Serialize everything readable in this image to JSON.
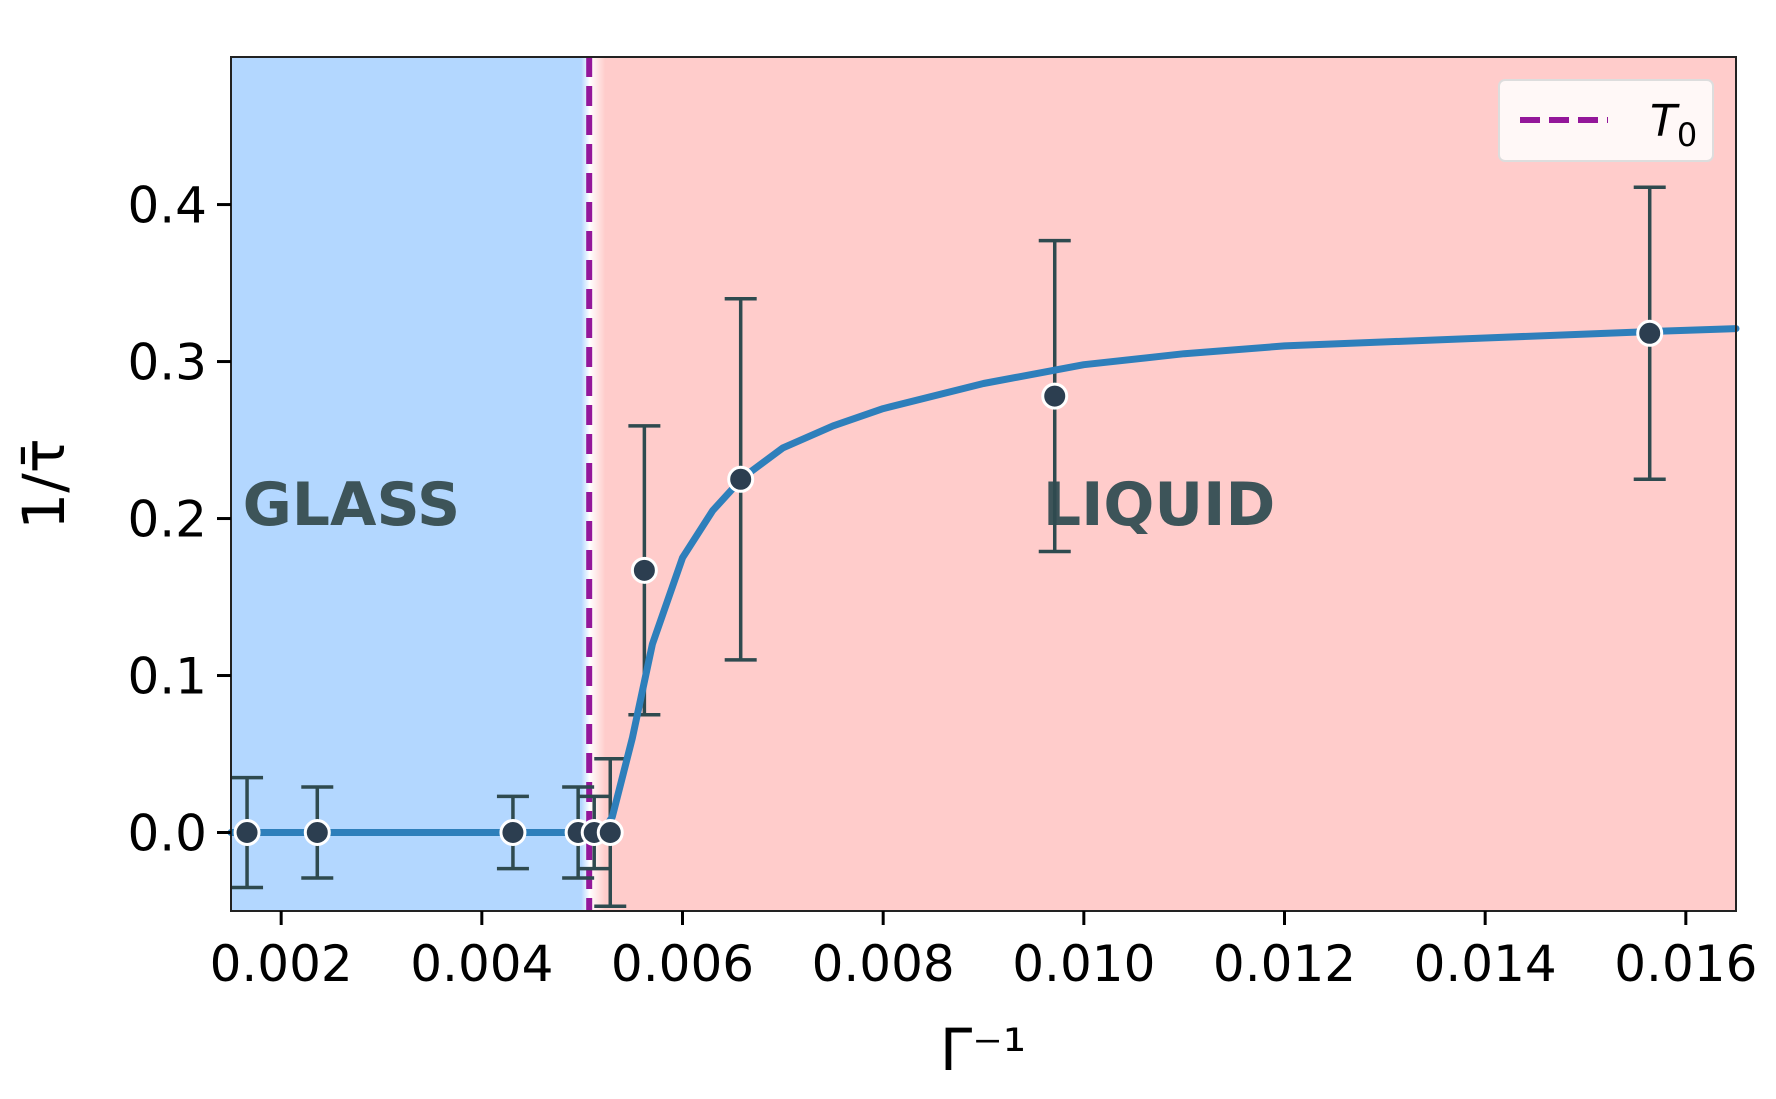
{
  "chart_data": {
    "type": "scatter",
    "xlabel": "Γ⁻¹",
    "ylabel": "1/τ̄",
    "xlim": [
      0.0015,
      0.0165
    ],
    "ylim": [
      -0.05,
      0.494
    ],
    "grid": false,
    "x_ticks": [
      "0.002",
      "0.004",
      "0.006",
      "0.008",
      "0.010",
      "0.012",
      "0.014",
      "0.016"
    ],
    "x_tick_values": [
      0.002,
      0.004,
      0.006,
      0.008,
      0.01,
      0.012,
      0.014,
      0.016
    ],
    "y_ticks": [
      "0.0",
      "0.1",
      "0.2",
      "0.3",
      "0.4"
    ],
    "y_tick_values": [
      0.0,
      0.1,
      0.2,
      0.3,
      0.4
    ],
    "points": {
      "x": [
        0.00166,
        0.00236,
        0.00431,
        0.00496,
        0.00512,
        0.00528,
        0.00562,
        0.00658,
        0.00971,
        0.01564
      ],
      "y": [
        0,
        0,
        0,
        0,
        0,
        0,
        0.167,
        0.225,
        0.278,
        0.318
      ],
      "err": [
        0.035,
        0.029,
        0.023,
        0.029,
        0.023,
        0.047,
        0.092,
        0.115,
        0.099,
        0.093
      ],
      "color": "#2c3e50"
    },
    "fit_curve": {
      "color": "#2e7fbb",
      "x": [
        0.0015,
        0.0052,
        0.0053,
        0.0055,
        0.0057,
        0.006,
        0.0063,
        0.0066,
        0.007,
        0.0075,
        0.008,
        0.009,
        0.01,
        0.011,
        0.012,
        0.014,
        0.0156,
        0.0165
      ],
      "y": [
        0,
        0,
        0.01,
        0.06,
        0.12,
        0.175,
        0.205,
        0.226,
        0.245,
        0.259,
        0.27,
        0.286,
        0.298,
        0.305,
        0.31,
        0.315,
        0.319,
        0.321
      ]
    },
    "vline": {
      "x": 0.00507,
      "label": "T",
      "label_sub": "0",
      "color": "#94179a",
      "style": "dashed"
    },
    "regions": [
      {
        "label": "GLASS",
        "from": 0.0015,
        "to": 0.00507,
        "color": "#b3d7ff",
        "label_x": 0.0027,
        "label_y": 0.21
      },
      {
        "label": "LIQUID",
        "from": 0.00507,
        "to": 0.0165,
        "color": "#ffcccb",
        "label_x": 0.01075,
        "label_y": 0.21
      }
    ],
    "legend": {
      "placement": "top-right"
    }
  }
}
